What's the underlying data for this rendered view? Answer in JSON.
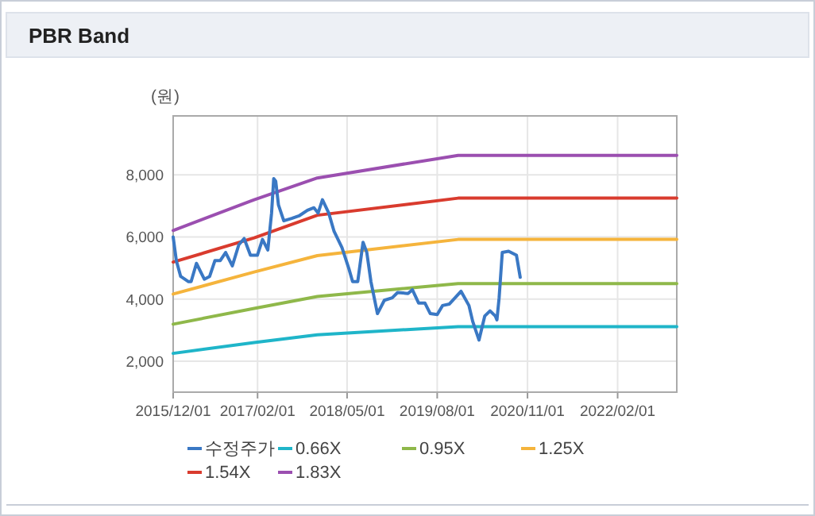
{
  "chart_data": {
    "type": "line",
    "title": "PBR Band",
    "ylabel": "(원)",
    "grid": true,
    "legend": "bottom",
    "marker": "none",
    "line_style": "solid",
    "xlim": [
      "2015-12-01",
      "2022-11-28"
    ],
    "xticks": [
      {
        "value": "2015-12-01",
        "label": "2015/12/01"
      },
      {
        "value": "2017-02-01",
        "label": "2017/02/01"
      },
      {
        "value": "2018-05-01",
        "label": "2018/05/01"
      },
      {
        "value": "2019-08-01",
        "label": "2019/08/01"
      },
      {
        "value": "2020-11-01",
        "label": "2020/11/01"
      },
      {
        "value": "2022-02-01",
        "label": "2022/02/01"
      }
    ],
    "ylim": [
      1000,
      9900
    ],
    "yticks": [
      {
        "value": 2000,
        "label": "2,000"
      },
      {
        "value": 4000,
        "label": "4,000"
      },
      {
        "value": 6000,
        "label": "6,000"
      },
      {
        "value": 8000,
        "label": "8,000"
      }
    ],
    "series": [
      {
        "name": "수정주가",
        "color": "#3a78c4",
        "x": [
          "2015-12-01",
          "2015-12-17",
          "2016-01-08",
          "2016-02-17",
          "2016-03-01",
          "2016-03-28",
          "2016-05-07",
          "2016-06-03",
          "2016-06-30",
          "2016-07-27",
          "2016-08-23",
          "2016-09-26",
          "2016-10-29",
          "2016-11-25",
          "2016-12-27",
          "2017-01-31",
          "2017-02-26",
          "2017-03-25",
          "2017-04-13",
          "2017-04-24",
          "2017-05-04",
          "2017-05-18",
          "2017-06-14",
          "2017-07-24",
          "2017-09-02",
          "2017-10-12",
          "2017-11-14",
          "2017-12-05",
          "2017-12-27",
          "2018-01-28",
          "2018-02-24",
          "2018-04-05",
          "2018-05-10",
          "2018-05-29",
          "2018-06-24",
          "2018-07-21",
          "2018-08-09",
          "2018-08-30",
          "2018-10-02",
          "2018-11-06",
          "2018-12-16",
          "2019-01-12",
          "2019-03-06",
          "2019-03-28",
          "2019-04-29",
          "2019-05-31",
          "2019-06-27",
          "2019-08-01",
          "2019-08-28",
          "2019-10-02",
          "2019-11-30",
          "2020-01-09",
          "2020-01-28",
          "2020-02-29",
          "2020-03-29",
          "2020-04-25",
          "2020-05-22",
          "2020-05-30",
          "2020-06-10",
          "2020-06-26",
          "2020-07-28",
          "2020-09-06",
          "2020-09-25"
        ],
        "values": [
          6000,
          5240,
          4730,
          4560,
          4560,
          5150,
          4640,
          4730,
          5240,
          5240,
          5500,
          5070,
          5750,
          5950,
          5410,
          5410,
          5920,
          5580,
          6770,
          7880,
          7800,
          7030,
          6520,
          6600,
          6690,
          6860,
          6940,
          6770,
          7200,
          6770,
          6180,
          5660,
          4980,
          4560,
          4560,
          5830,
          5500,
          4560,
          3530,
          3960,
          4040,
          4210,
          4180,
          4300,
          3870,
          3870,
          3530,
          3500,
          3790,
          3840,
          4250,
          3790,
          3280,
          2680,
          3450,
          3620,
          3450,
          3330,
          4040,
          5500,
          5540,
          5410,
          4700
        ]
      },
      {
        "name": "0.66X",
        "color": "#1fb5c9",
        "x": [
          "2015-12-01",
          "2017-01-15",
          "2017-12-01",
          "2019-11-15",
          "2022-11-28"
        ],
        "values": [
          2250,
          2600,
          2850,
          3110,
          3110
        ]
      },
      {
        "name": "0.95X",
        "color": "#8fb84a",
        "x": [
          "2015-12-01",
          "2017-01-15",
          "2017-12-01",
          "2019-11-15",
          "2022-11-28"
        ],
        "values": [
          3190,
          3700,
          4080,
          4500,
          4500
        ]
      },
      {
        "name": "1.25X",
        "color": "#f5b43c",
        "x": [
          "2015-12-01",
          "2017-01-15",
          "2017-12-01",
          "2019-11-15",
          "2022-11-28"
        ],
        "values": [
          4160,
          4870,
          5400,
          5920,
          5920
        ]
      },
      {
        "name": "1.54X",
        "color": "#d93b2e",
        "x": [
          "2015-12-01",
          "2017-01-15",
          "2017-12-01",
          "2019-11-15",
          "2022-11-28"
        ],
        "values": [
          5190,
          5970,
          6700,
          7250,
          7250
        ]
      },
      {
        "name": "1.83X",
        "color": "#9b4fb0",
        "x": [
          "2015-12-01",
          "2017-01-15",
          "2017-12-01",
          "2019-11-15",
          "2022-11-28"
        ],
        "values": [
          6210,
          7200,
          7900,
          8630,
          8630
        ]
      }
    ]
  }
}
